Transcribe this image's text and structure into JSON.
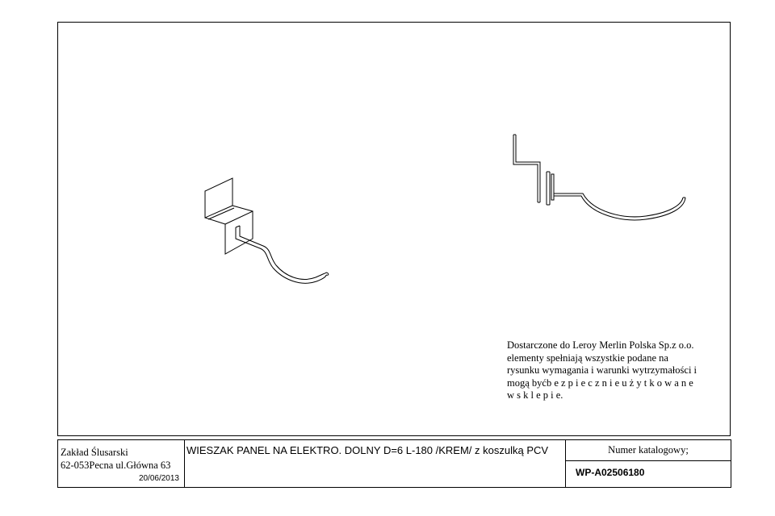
{
  "drawing": {
    "views": [
      "isometric-hook-view",
      "side-hook-view"
    ]
  },
  "note": {
    "text": "Dostarczone do Leroy Merlin Polska Sp.z o.o.\nelementy spełniają wszystkie podane na\nrysunku wymagania i warunki wytrzymałości i\nmogą byćb e z p i e c z n i e   u ż y t k o w a n e\nw   s k l e p i e."
  },
  "title_block": {
    "company_name": "Zakład Ślusarski",
    "company_address": "62-053Pecna ul.Główna 63",
    "date": "20/06/2013",
    "product_title": "WIESZAK PANEL NA ELEKTRO. DOLNY  D=6 L-180  /KREM/  z koszulką PCV",
    "catalog_label": "Numer katalogowy;",
    "catalog_number": "WP-A02506180"
  }
}
